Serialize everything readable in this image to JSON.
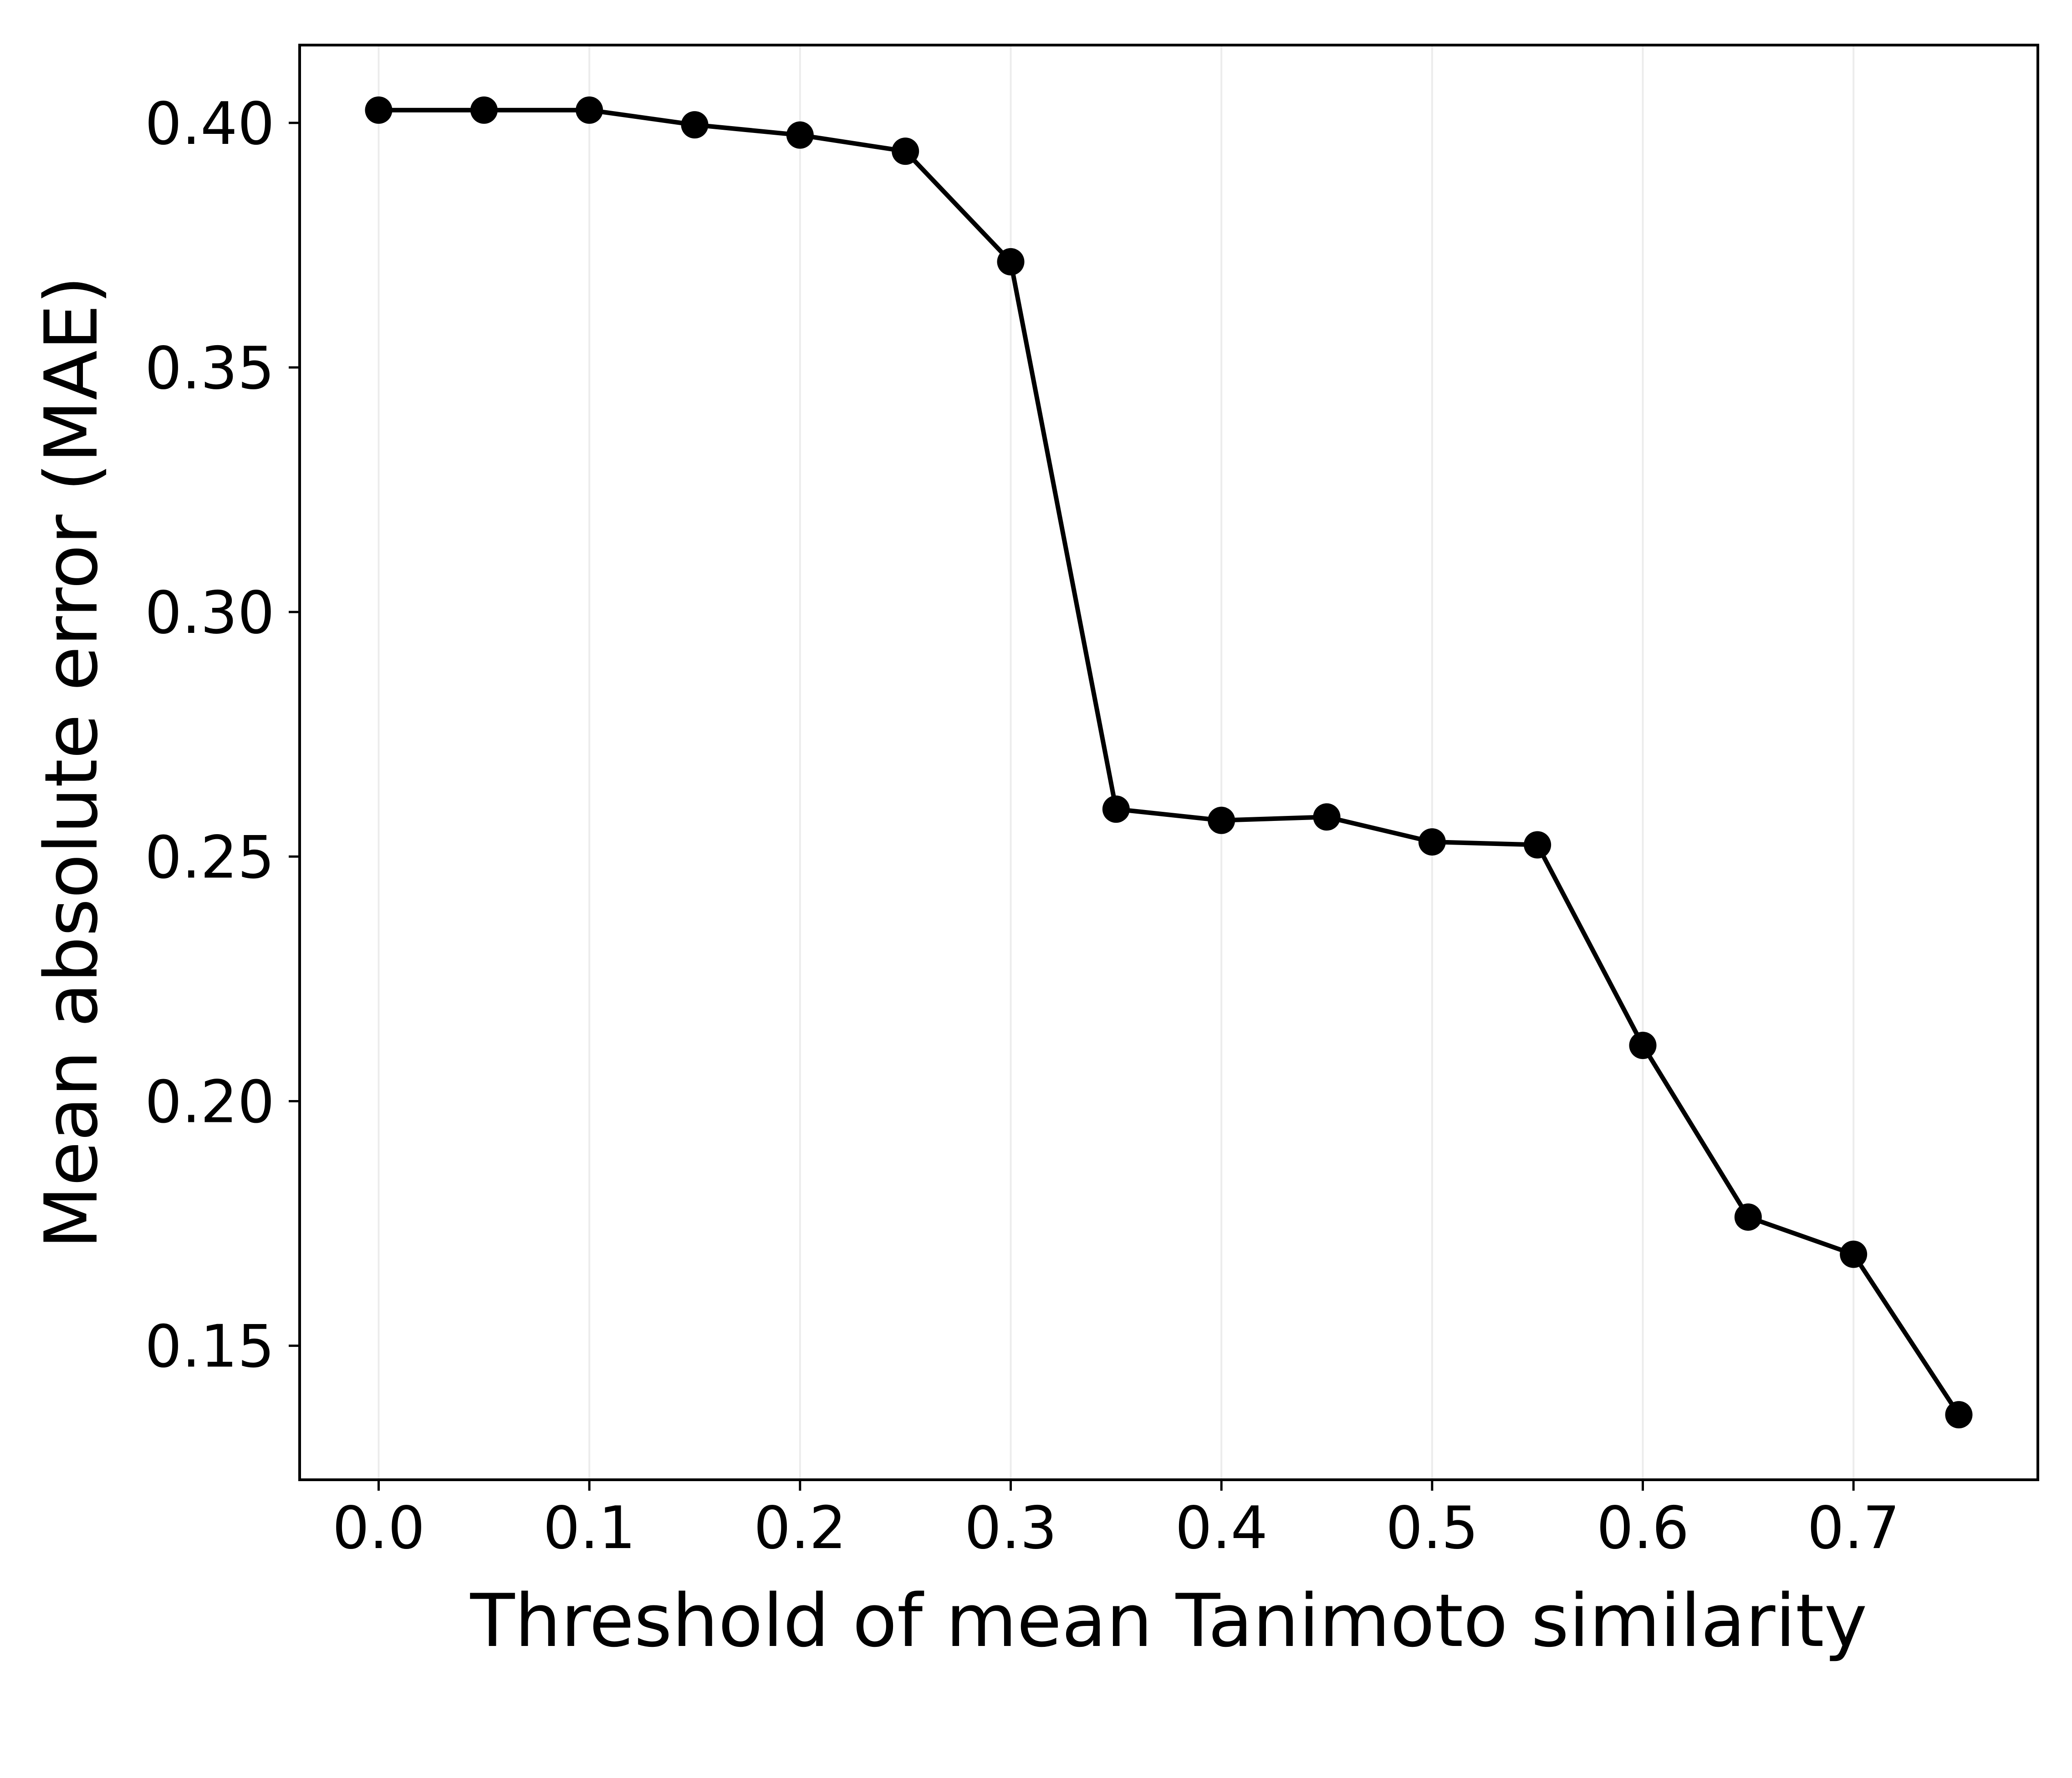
{
  "chart_data": {
    "type": "line",
    "title": "",
    "xlabel": "Threshold of mean Tanimoto similarity",
    "ylabel": "Mean absolute error (MAE)",
    "x": [
      0.0,
      0.05,
      0.1,
      0.15,
      0.2,
      0.25,
      0.3,
      0.35,
      0.4,
      0.45,
      0.5,
      0.55,
      0.6,
      0.65,
      0.7,
      0.75
    ],
    "series": [
      {
        "name": "MAE",
        "values": [
          0.4026,
          0.4026,
          0.4026,
          0.3996,
          0.3975,
          0.3942,
          0.3716,
          0.2597,
          0.2574,
          0.2581,
          0.253,
          0.2524,
          0.2114,
          0.1763,
          0.1687,
          0.1359
        ],
        "color": "#000000",
        "marker": "circle"
      }
    ],
    "xlim": [
      -0.0375,
      0.7875
    ],
    "ylim": [
      0.1226,
      0.4159
    ],
    "xticks": [
      0.0,
      0.1,
      0.2,
      0.3,
      0.4,
      0.5,
      0.6,
      0.7
    ],
    "xtick_labels": [
      "0.0",
      "0.1",
      "0.2",
      "0.3",
      "0.4",
      "0.5",
      "0.6",
      "0.7"
    ],
    "yticks": [
      0.15,
      0.2,
      0.25,
      0.3,
      0.35,
      0.4
    ],
    "ytick_labels": [
      "0.15",
      "0.20",
      "0.25",
      "0.30",
      "0.35",
      "0.40"
    ],
    "grid": "vertical",
    "grid_color": "#ececec",
    "legend": "none"
  }
}
